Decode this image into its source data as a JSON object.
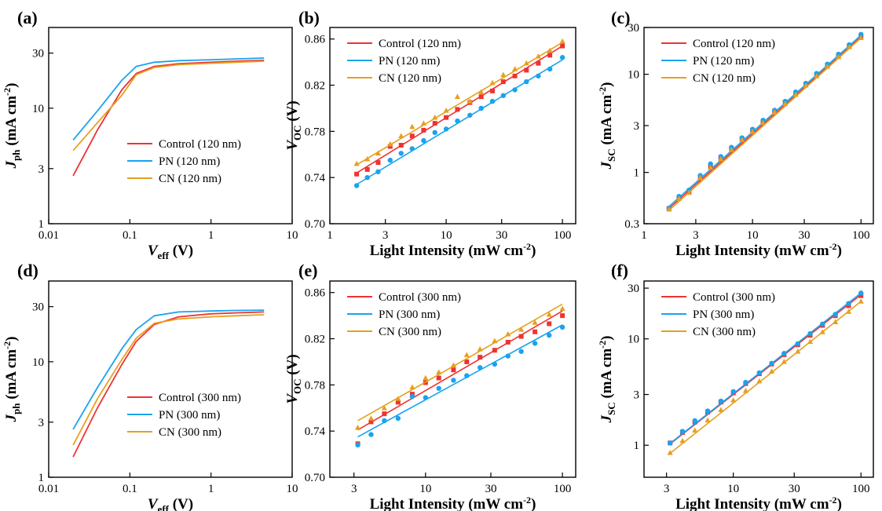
{
  "colors": {
    "Control": "#ee3333",
    "PN": "#1aa3ee",
    "CN": "#e6a020"
  },
  "chart_data": [
    {
      "panel": "(a)",
      "type": "line",
      "xlabel_main": "V",
      "xlabel_sub": "eff",
      "xlabel_unit": " (V)",
      "ylabel_main": "J",
      "ylabel_sub": "ph",
      "ylabel_unit": " (mA cm",
      "ylabel_sup": "-2",
      "ylabel_close": ")",
      "xscale": "log",
      "yscale": "log",
      "xlim": [
        0.01,
        10
      ],
      "ylim": [
        1,
        50
      ],
      "xticks": [
        0.01,
        0.1,
        1,
        10
      ],
      "xticklabels": [
        "0.01",
        "0.1",
        "1",
        "10"
      ],
      "yticks": [
        1,
        3,
        10,
        30
      ],
      "yticklabels": [
        "1",
        "3",
        "10",
        "30"
      ],
      "legend_position": "bottom-right",
      "series": [
        {
          "name": "Control (120 nm)",
          "key": "Control",
          "x": [
            0.02,
            0.04,
            0.08,
            0.12,
            0.2,
            0.4,
            1,
            2,
            4.5
          ],
          "y": [
            2.6,
            6.5,
            14.5,
            20,
            23,
            24.3,
            25,
            25.5,
            26
          ]
        },
        {
          "name": "PN (120 nm)",
          "key": "PN",
          "x": [
            0.02,
            0.04,
            0.08,
            0.12,
            0.2,
            0.4,
            1,
            2,
            4.5
          ],
          "y": [
            5.3,
            9.5,
            17.5,
            23,
            25,
            25.8,
            26.3,
            26.7,
            27.2
          ]
        },
        {
          "name": "CN (120 nm)",
          "key": "CN",
          "x": [
            0.02,
            0.04,
            0.08,
            0.12,
            0.2,
            0.4,
            1,
            2,
            4.5
          ],
          "y": [
            4.3,
            7.5,
            13,
            19.5,
            22.5,
            23.8,
            24.5,
            25,
            25.5
          ]
        }
      ]
    },
    {
      "panel": "(b)",
      "type": "scatter",
      "xlabel": "Light Intensity (mW cm",
      "xlabel_sup": "-2",
      "xlabel_close": ")",
      "ylabel_main": "V",
      "ylabel_sub": "OC",
      "ylabel_unit": " (V)",
      "xscale": "log",
      "yscale": "linear",
      "xlim": [
        1,
        130
      ],
      "ylim": [
        0.7,
        0.87
      ],
      "xticks": [
        1,
        3,
        10,
        30,
        100
      ],
      "xticklabels": [
        "1",
        "3",
        "10",
        "30",
        "100"
      ],
      "yticks": [
        0.7,
        0.74,
        0.78,
        0.82,
        0.86
      ],
      "yticklabels": [
        "0.70",
        "0.74",
        "0.78",
        "0.82",
        "0.86"
      ],
      "legend_position": "top-left",
      "series": [
        {
          "name": "Control (120 nm)",
          "key": "Control",
          "marker": "square",
          "x": [
            1.7,
            2.1,
            2.6,
            3.3,
            4.1,
            5.1,
            6.4,
            8,
            10,
            12.5,
            16,
            20,
            25,
            31,
            39,
            49,
            62,
            78,
            100
          ],
          "y": [
            0.743,
            0.747,
            0.753,
            0.767,
            0.768,
            0.776,
            0.781,
            0.787,
            0.792,
            0.799,
            0.805,
            0.81,
            0.815,
            0.823,
            0.828,
            0.833,
            0.839,
            0.846,
            0.854
          ],
          "fit_y": [
            0.744,
            0.854
          ]
        },
        {
          "name": "PN (120 nm)",
          "key": "PN",
          "marker": "circle",
          "x": [
            1.7,
            2.1,
            2.6,
            3.3,
            4.1,
            5.1,
            6.4,
            8,
            10,
            12.5,
            16,
            20,
            25,
            31,
            39,
            49,
            62,
            78,
            100
          ],
          "y": [
            0.733,
            0.74,
            0.745,
            0.755,
            0.761,
            0.765,
            0.772,
            0.779,
            0.782,
            0.789,
            0.794,
            0.8,
            0.806,
            0.811,
            0.816,
            0.823,
            0.828,
            0.834,
            0.844
          ],
          "fit_y": [
            0.734,
            0.842
          ]
        },
        {
          "name": "CN (120 nm)",
          "key": "CN",
          "marker": "triangle",
          "x": [
            1.7,
            2.1,
            2.6,
            3.3,
            4.1,
            5.1,
            6.4,
            8,
            10,
            12.5,
            16,
            20,
            25,
            31,
            39,
            49,
            62,
            78,
            100
          ],
          "y": [
            0.752,
            0.756,
            0.761,
            0.769,
            0.776,
            0.784,
            0.787,
            0.792,
            0.798,
            0.81,
            0.806,
            0.814,
            0.822,
            0.829,
            0.834,
            0.839,
            0.845,
            0.85,
            0.858
          ],
          "fit_y": [
            0.751,
            0.857
          ]
        }
      ]
    },
    {
      "panel": "(c)",
      "type": "scatter",
      "xlabel": "Light Intensity (mW cm",
      "xlabel_sup": "-2",
      "xlabel_close": ")",
      "ylabel_main": "J",
      "ylabel_sub": "SC",
      "ylabel_unit": " (mA cm",
      "ylabel_sup": "-2",
      "ylabel_close": ")",
      "xscale": "log",
      "yscale": "log",
      "xlim": [
        1,
        130
      ],
      "ylim": [
        0.3,
        30
      ],
      "xticks": [
        1,
        3,
        10,
        30,
        100
      ],
      "xticklabels": [
        "1",
        "3",
        "10",
        "30",
        "100"
      ],
      "yticks": [
        0.3,
        1,
        3,
        10,
        30
      ],
      "yticklabels": [
        "0.3",
        "1",
        "3",
        "10",
        "30"
      ],
      "legend_position": "top-left",
      "series": [
        {
          "name": "Control (120 nm)",
          "key": "Control",
          "marker": "square",
          "x": [
            1.7,
            2.1,
            2.6,
            3.3,
            4.1,
            5.1,
            6.4,
            8,
            10,
            12.5,
            16,
            20,
            25,
            31,
            39,
            49,
            62,
            78,
            100
          ],
          "y": [
            0.43,
            0.55,
            0.63,
            0.9,
            1.15,
            1.4,
            1.75,
            2.2,
            2.7,
            3.3,
            4.2,
            5.2,
            6.4,
            7.9,
            9.9,
            12.3,
            15.5,
            19.5,
            24.5
          ],
          "fit_y": [
            0.43,
            24.0
          ]
        },
        {
          "name": "PN (120 nm)",
          "key": "PN",
          "marker": "circle",
          "x": [
            1.7,
            2.1,
            2.6,
            3.3,
            4.1,
            5.1,
            6.4,
            8,
            10,
            12.5,
            16,
            20,
            25,
            31,
            39,
            49,
            62,
            78,
            100
          ],
          "y": [
            0.43,
            0.57,
            0.66,
            0.93,
            1.22,
            1.45,
            1.8,
            2.25,
            2.75,
            3.4,
            4.3,
            5.3,
            6.6,
            8.1,
            10.2,
            12.7,
            16,
            20,
            25.5
          ],
          "fit_y": [
            0.45,
            25.0
          ]
        },
        {
          "name": "CN (120 nm)",
          "key": "CN",
          "marker": "triangle",
          "x": [
            1.7,
            2.1,
            2.6,
            3.3,
            4.1,
            5.1,
            6.4,
            8,
            10,
            12.5,
            16,
            20,
            25,
            31,
            39,
            49,
            62,
            78,
            100
          ],
          "y": [
            0.42,
            0.54,
            0.62,
            0.88,
            1.12,
            1.37,
            1.7,
            2.15,
            2.6,
            3.2,
            4.1,
            5.0,
            6.2,
            7.7,
            9.6,
            12,
            15,
            19,
            23.5
          ],
          "fit_y": [
            0.41,
            23.5
          ]
        }
      ]
    },
    {
      "panel": "(d)",
      "type": "line",
      "xlabel_main": "V",
      "xlabel_sub": "eff",
      "xlabel_unit": " (V)",
      "ylabel_main": "J",
      "ylabel_sub": "ph",
      "ylabel_unit": " (mA cm",
      "ylabel_sup": "-2",
      "ylabel_close": ")",
      "xscale": "log",
      "yscale": "log",
      "xlim": [
        0.01,
        10
      ],
      "ylim": [
        1,
        50
      ],
      "xticks": [
        0.01,
        0.1,
        1,
        10
      ],
      "xticklabels": [
        "0.01",
        "0.1",
        "1",
        "10"
      ],
      "yticks": [
        1,
        3,
        10,
        30
      ],
      "yticklabels": [
        "1",
        "3",
        "10",
        "30"
      ],
      "legend_position": "bottom-right",
      "series": [
        {
          "name": "Control (300 nm)",
          "key": "Control",
          "x": [
            0.02,
            0.04,
            0.08,
            0.12,
            0.2,
            0.4,
            1,
            2,
            4.5
          ],
          "y": [
            1.5,
            4.0,
            9.5,
            15,
            21,
            24.5,
            26,
            26.5,
            27
          ]
        },
        {
          "name": "PN (300 nm)",
          "key": "PN",
          "x": [
            0.02,
            0.04,
            0.08,
            0.12,
            0.2,
            0.4,
            1,
            2,
            4.5
          ],
          "y": [
            2.6,
            6.0,
            13,
            19,
            25,
            27,
            27.5,
            27.8,
            28
          ]
        },
        {
          "name": "CN (300 nm)",
          "key": "CN",
          "x": [
            0.02,
            0.04,
            0.08,
            0.12,
            0.2,
            0.4,
            1,
            2,
            4.5
          ],
          "y": [
            1.9,
            4.8,
            10.5,
            16,
            21.5,
            23.5,
            24.5,
            25,
            25.5
          ]
        }
      ]
    },
    {
      "panel": "(e)",
      "type": "scatter",
      "xlabel": "Light Intensity (mW cm",
      "xlabel_sup": "-2",
      "xlabel_close": ")",
      "ylabel_main": "V",
      "ylabel_sub": "OC",
      "ylabel_unit": " (V)",
      "xscale": "log",
      "yscale": "linear",
      "xlim": [
        2,
        125
      ],
      "ylim": [
        0.7,
        0.87
      ],
      "xticks": [
        3,
        10,
        30,
        100
      ],
      "xticklabels": [
        "3",
        "10",
        "30",
        "100"
      ],
      "yticks": [
        0.7,
        0.74,
        0.78,
        0.82,
        0.86
      ],
      "yticklabels": [
        "0.70",
        "0.74",
        "0.78",
        "0.82",
        "0.86"
      ],
      "legend_position": "top-left",
      "series": [
        {
          "name": "Control (300 nm)",
          "key": "Control",
          "marker": "square",
          "x": [
            3.2,
            4,
            5,
            6.3,
            8,
            10,
            12.5,
            16,
            20,
            25,
            32,
            40,
            50,
            63,
            80,
            100
          ],
          "y": [
            0.729,
            0.748,
            0.755,
            0.765,
            0.772,
            0.782,
            0.786,
            0.793,
            0.8,
            0.804,
            0.81,
            0.817,
            0.822,
            0.826,
            0.833,
            0.84
          ],
          "fit_y": [
            0.741,
            0.844
          ]
        },
        {
          "name": "PN (300 nm)",
          "key": "PN",
          "marker": "circle",
          "x": [
            3.2,
            4,
            5,
            6.3,
            8,
            10,
            12.5,
            16,
            20,
            25,
            32,
            40,
            50,
            63,
            80,
            100
          ],
          "y": [
            0.728,
            0.737,
            0.749,
            0.751,
            0.77,
            0.769,
            0.777,
            0.784,
            0.788,
            0.795,
            0.798,
            0.805,
            0.809,
            0.816,
            0.823,
            0.83
          ],
          "fit_y": [
            0.735,
            0.832
          ]
        },
        {
          "name": "CN (300 nm)",
          "key": "CN",
          "marker": "triangle",
          "x": [
            3.2,
            4,
            5,
            6.3,
            8,
            10,
            12.5,
            16,
            20,
            25,
            32,
            40,
            50,
            63,
            80,
            100
          ],
          "y": [
            0.743,
            0.751,
            0.76,
            0.768,
            0.778,
            0.786,
            0.791,
            0.797,
            0.806,
            0.811,
            0.818,
            0.824,
            0.828,
            0.834,
            0.841,
            0.846
          ],
          "fit_y": [
            0.749,
            0.85
          ]
        }
      ]
    },
    {
      "panel": "(f)",
      "type": "scatter",
      "xlabel": "Light Intensity (mW cm",
      "xlabel_sup": "-2",
      "xlabel_close": ")",
      "ylabel_main": "J",
      "ylabel_sub": "SC",
      "ylabel_unit": " (mA cm",
      "ylabel_sup": "-2",
      "ylabel_close": ")",
      "xscale": "log",
      "yscale": "log",
      "xlim": [
        2,
        125
      ],
      "ylim": [
        0.5,
        35
      ],
      "xticks": [
        3,
        10,
        30,
        100
      ],
      "xticklabels": [
        "3",
        "10",
        "30",
        "100"
      ],
      "yticks": [
        1,
        3,
        10,
        30
      ],
      "yticklabels": [
        "1",
        "3",
        "10",
        "30"
      ],
      "legend_position": "top-left",
      "series": [
        {
          "name": "Control (300 nm)",
          "key": "Control",
          "marker": "square",
          "x": [
            3.2,
            4,
            5,
            6.3,
            8,
            10,
            12.5,
            16,
            20,
            25,
            32,
            40,
            50,
            63,
            80,
            100
          ],
          "y": [
            1.05,
            1.32,
            1.65,
            2.05,
            2.55,
            3.1,
            3.8,
            4.7,
            5.8,
            7.1,
            8.8,
            10.8,
            13.4,
            16.5,
            20.5,
            25.5
          ],
          "fit_y": [
            1.03,
            26.0
          ]
        },
        {
          "name": "PN (300 nm)",
          "key": "PN",
          "marker": "circle",
          "x": [
            3.2,
            4,
            5,
            6.3,
            8,
            10,
            12.5,
            16,
            20,
            25,
            32,
            40,
            50,
            63,
            80,
            100
          ],
          "y": [
            1.05,
            1.35,
            1.7,
            2.1,
            2.6,
            3.2,
            3.9,
            4.8,
            5.9,
            7.3,
            9.0,
            11.2,
            13.8,
            17,
            21.5,
            27
          ],
          "fit_y": [
            1.04,
            27.0
          ]
        },
        {
          "name": "CN (300 nm)",
          "key": "CN",
          "marker": "triangle",
          "x": [
            3.2,
            4,
            5,
            6.3,
            8,
            10,
            12.5,
            16,
            20,
            25,
            32,
            40,
            50,
            63,
            80,
            100
          ],
          "y": [
            0.85,
            1.1,
            1.38,
            1.72,
            2.15,
            2.65,
            3.25,
            4.0,
            4.95,
            6.1,
            7.6,
            9.4,
            11.6,
            14.4,
            18,
            22.5
          ],
          "fit_y": [
            0.84,
            22.5
          ]
        }
      ]
    }
  ]
}
